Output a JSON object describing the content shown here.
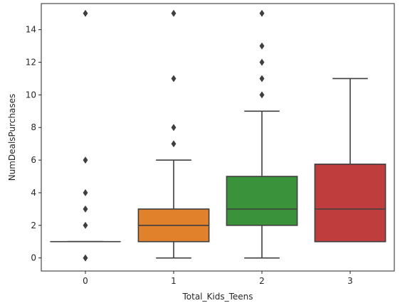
{
  "chart_data": {
    "type": "box",
    "title": "",
    "xlabel": "Total_Kids_Teens",
    "ylabel": "NumDealsPurchases",
    "categories": [
      "0",
      "1",
      "2",
      "3"
    ],
    "colors": [
      "#3274a1",
      "#e1812c",
      "#3a923a",
      "#c03d3e"
    ],
    "ylim": [
      -0.8,
      15.6
    ],
    "yticks": [
      0,
      2,
      4,
      6,
      8,
      10,
      12,
      14
    ],
    "grid": false,
    "boxes": [
      {
        "category": "0",
        "q1": 1,
        "median": 1,
        "q3": 1,
        "whisker_low": 1,
        "whisker_high": 1,
        "outliers": [
          0,
          2,
          3,
          4,
          6,
          15
        ]
      },
      {
        "category": "1",
        "q1": 1,
        "median": 2,
        "q3": 3,
        "whisker_low": 0,
        "whisker_high": 6,
        "outliers": [
          7,
          8,
          11,
          15
        ]
      },
      {
        "category": "2",
        "q1": 2,
        "median": 3,
        "q3": 5,
        "whisker_low": 0,
        "whisker_high": 9,
        "outliers": [
          10,
          11,
          12,
          13,
          15
        ]
      },
      {
        "category": "3",
        "q1": 1,
        "median": 3,
        "q3": 5.75,
        "whisker_low": 1,
        "whisker_high": 11,
        "outliers": []
      }
    ]
  }
}
